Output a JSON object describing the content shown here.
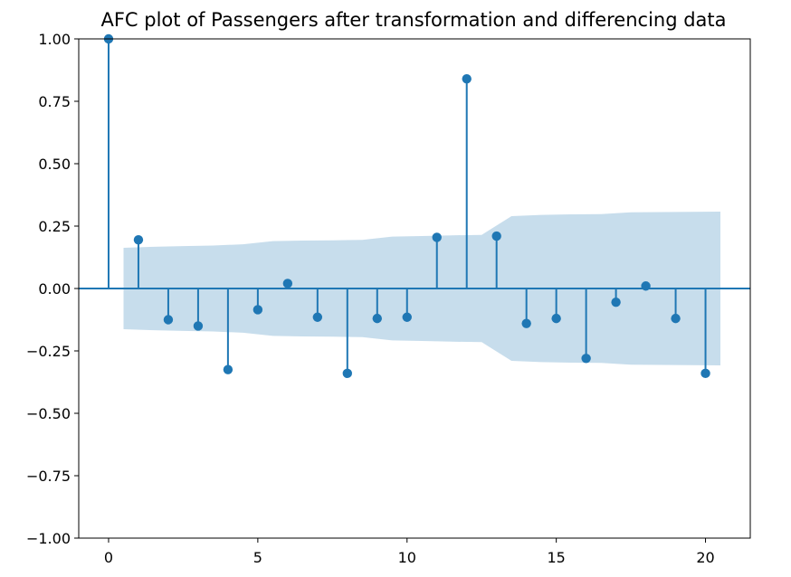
{
  "chart_data": {
    "type": "stem",
    "title": "AFC plot of Passengers after transformation and differencing data",
    "xlabel": "",
    "ylabel": "",
    "xlim": [
      -1,
      21.5
    ],
    "ylim": [
      -1.0,
      1.0
    ],
    "x_ticks": [
      "0",
      "5",
      "10",
      "15",
      "20"
    ],
    "y_ticks": [
      "−1.00",
      "−0.75",
      "−0.50",
      "−0.25",
      "0.00",
      "0.25",
      "0.50",
      "0.75",
      "1.00"
    ],
    "grid": false,
    "series": [
      {
        "x": [
          0,
          1,
          2,
          3,
          4,
          5,
          6,
          7,
          8,
          9,
          10,
          11,
          12,
          13,
          14,
          15,
          16,
          17,
          18,
          19,
          20
        ],
        "values": [
          1.0,
          0.195,
          -0.125,
          -0.15,
          -0.325,
          -0.085,
          0.02,
          -0.115,
          -0.34,
          -0.12,
          -0.115,
          0.205,
          0.84,
          0.21,
          -0.14,
          -0.12,
          -0.28,
          -0.055,
          0.01,
          -0.12,
          -0.34
        ]
      }
    ],
    "confidence_band": {
      "x": [
        0.5,
        1.5,
        2.5,
        3.5,
        4.5,
        5.5,
        6.5,
        7.5,
        8.5,
        9.5,
        10.5,
        11.5,
        12.5,
        13.5,
        14.5,
        15.5,
        16.5,
        17.5,
        18.5,
        19.5,
        20.5
      ],
      "upper": [
        0.163,
        0.167,
        0.17,
        0.172,
        0.177,
        0.19,
        0.192,
        0.193,
        0.195,
        0.208,
        0.21,
        0.213,
        0.215,
        0.29,
        0.295,
        0.297,
        0.298,
        0.305,
        0.306,
        0.307,
        0.308
      ],
      "lower": [
        -0.163,
        -0.167,
        -0.17,
        -0.172,
        -0.177,
        -0.19,
        -0.192,
        -0.193,
        -0.195,
        -0.208,
        -0.21,
        -0.213,
        -0.215,
        -0.29,
        -0.295,
        -0.297,
        -0.298,
        -0.305,
        -0.306,
        -0.307,
        -0.308
      ]
    },
    "colors": {
      "stem": "#1f77b4",
      "band": "#1f77b4",
      "axes": "#000000"
    }
  }
}
